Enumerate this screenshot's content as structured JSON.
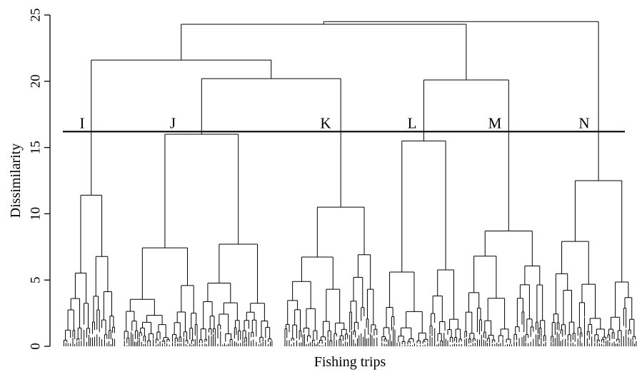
{
  "chart_data": {
    "type": "dendrogram",
    "xlabel": "Fishing trips",
    "ylabel": "Dissimilarity",
    "ylim": [
      0,
      25
    ],
    "yticks": [
      0,
      5,
      10,
      15,
      20,
      25
    ],
    "cut_height": 16.2,
    "clusters": [
      {
        "label": "I",
        "height": 11.4
      },
      {
        "label": "J",
        "height": 16.0
      },
      {
        "label": "K",
        "height": 10.5
      },
      {
        "label": "L",
        "height": 15.5
      },
      {
        "label": "M",
        "height": 8.7
      },
      {
        "label": "N",
        "height": 12.5
      }
    ],
    "upper_merges": [
      {
        "clusters": [
          "J",
          "K"
        ],
        "height": 20.2
      },
      {
        "clusters": [
          "I",
          "J-K"
        ],
        "height": 21.6
      },
      {
        "clusters": [
          "L",
          "M"
        ],
        "height": 20.1
      },
      {
        "clusters": [
          "I-J-K",
          "L-M"
        ],
        "height": 24.3
      },
      {
        "clusters": [
          "I-J-K-L-M",
          "N"
        ],
        "height": 24.5
      }
    ]
  }
}
